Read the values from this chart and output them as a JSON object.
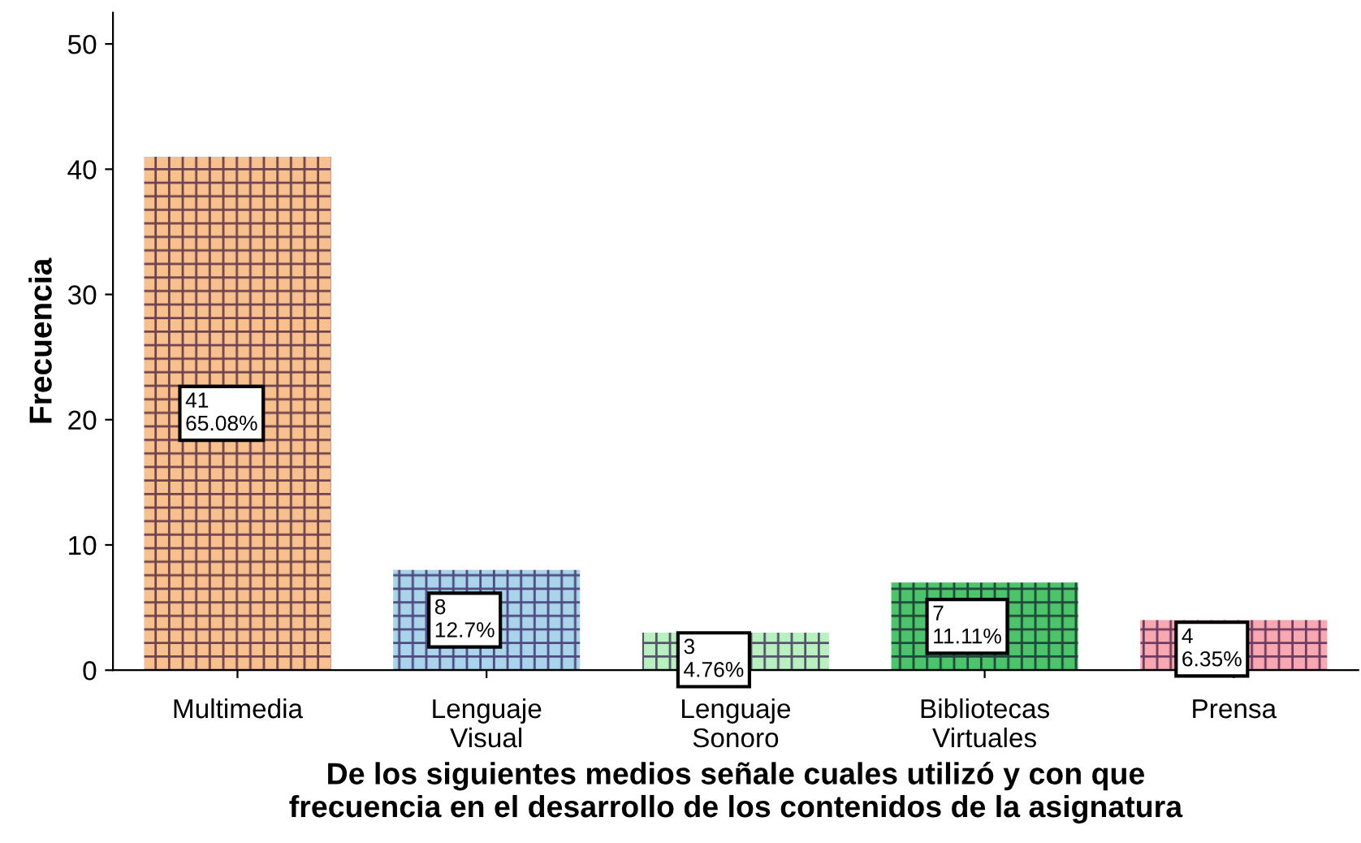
{
  "chart_data": {
    "type": "bar",
    "xlabel": "De los siguientes medios señale cuales utilizó y con que\nfrecuencia en el desarrollo de los contenidos de la asignatura",
    "ylabel": "Frecuencia",
    "categories": [
      "Multimedia",
      "Lenguaje Visual",
      "Lenguaje Sonoro",
      "Bibliotecas Virtuales",
      "Prensa"
    ],
    "values": [
      41,
      8,
      3,
      7,
      4
    ],
    "colors": [
      "#f7c08c",
      "#a9d4ea",
      "#b8f0c0",
      "#4cc46a",
      "#f7a8b0"
    ],
    "value_labels": [
      "41\n65.08%",
      "8\n12.7%",
      "3\n4.76%",
      "7\n11.11%",
      "4\n6.35%"
    ],
    "ylim": [
      0,
      52.5
    ],
    "yticks": [
      0,
      10,
      20,
      30,
      40,
      50
    ],
    "grid": false
  }
}
